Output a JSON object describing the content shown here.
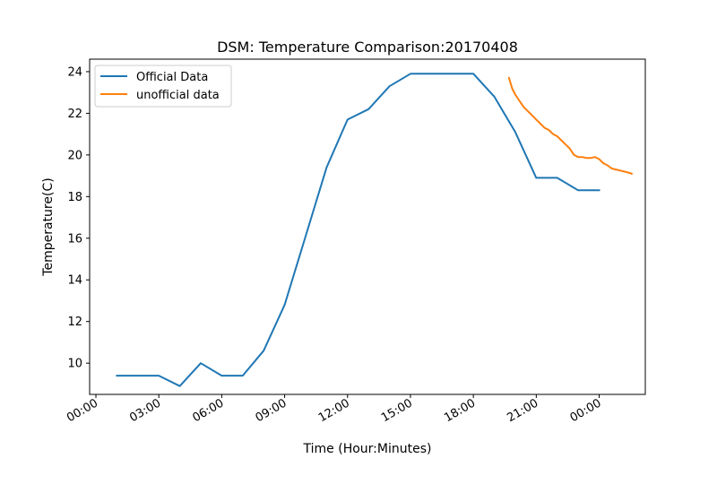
{
  "chart_data": {
    "type": "line",
    "title": "DSM: Temperature Comparison:20170408",
    "xlabel": "Time (Hour:Minutes)",
    "ylabel": "Temperature(C)",
    "x_unit": "hours",
    "xlim": [
      -0.3,
      26.2
    ],
    "ylim": [
      8.5,
      24.6
    ],
    "xticks": [
      0,
      3,
      6,
      9,
      12,
      15,
      18,
      21,
      24
    ],
    "xtick_labels": [
      "00:00",
      "03:00",
      "06:00",
      "09:00",
      "12:00",
      "15:00",
      "18:00",
      "21:00",
      "00:00"
    ],
    "yticks": [
      10,
      12,
      14,
      16,
      18,
      20,
      22,
      24
    ],
    "ytick_labels": [
      "10",
      "12",
      "14",
      "16",
      "18",
      "20",
      "22",
      "24"
    ],
    "grid": false,
    "legend_position": "upper left",
    "series": [
      {
        "name": "Official Data",
        "color": "#1f77b4",
        "points": [
          [
            1,
            9.4
          ],
          [
            2,
            9.4
          ],
          [
            3,
            9.4
          ],
          [
            4,
            8.9
          ],
          [
            5,
            10.0
          ],
          [
            6,
            9.4
          ],
          [
            7,
            9.4
          ],
          [
            8,
            10.6
          ],
          [
            9,
            12.8
          ],
          [
            10,
            16.1
          ],
          [
            11,
            19.4
          ],
          [
            12,
            21.7
          ],
          [
            13,
            22.2
          ],
          [
            14,
            23.3
          ],
          [
            15,
            23.9
          ],
          [
            16,
            23.9
          ],
          [
            17,
            23.9
          ],
          [
            18,
            23.9
          ],
          [
            19,
            22.8
          ],
          [
            20,
            21.1
          ],
          [
            21,
            18.9
          ],
          [
            22,
            18.9
          ],
          [
            23,
            18.3
          ],
          [
            24,
            18.3
          ]
        ]
      },
      {
        "name": "unofficial data",
        "color": "#ff7f0e",
        "points": [
          [
            19.7,
            23.7
          ],
          [
            19.85,
            23.2
          ],
          [
            20.0,
            22.9
          ],
          [
            20.2,
            22.6
          ],
          [
            20.4,
            22.3
          ],
          [
            20.6,
            22.1
          ],
          [
            20.8,
            21.9
          ],
          [
            21.0,
            21.7
          ],
          [
            21.2,
            21.5
          ],
          [
            21.4,
            21.3
          ],
          [
            21.6,
            21.2
          ],
          [
            21.8,
            21.0
          ],
          [
            22.0,
            20.9
          ],
          [
            22.2,
            20.7
          ],
          [
            22.4,
            20.5
          ],
          [
            22.6,
            20.3
          ],
          [
            22.8,
            20.0
          ],
          [
            23.0,
            19.9
          ],
          [
            23.2,
            19.9
          ],
          [
            23.4,
            19.85
          ],
          [
            23.6,
            19.85
          ],
          [
            23.8,
            19.9
          ],
          [
            24.0,
            19.8
          ],
          [
            24.2,
            19.6
          ],
          [
            24.4,
            19.5
          ],
          [
            24.6,
            19.35
          ],
          [
            24.8,
            19.3
          ],
          [
            25.0,
            19.25
          ],
          [
            25.2,
            19.2
          ],
          [
            25.4,
            19.15
          ],
          [
            25.55,
            19.1
          ]
        ]
      }
    ]
  }
}
